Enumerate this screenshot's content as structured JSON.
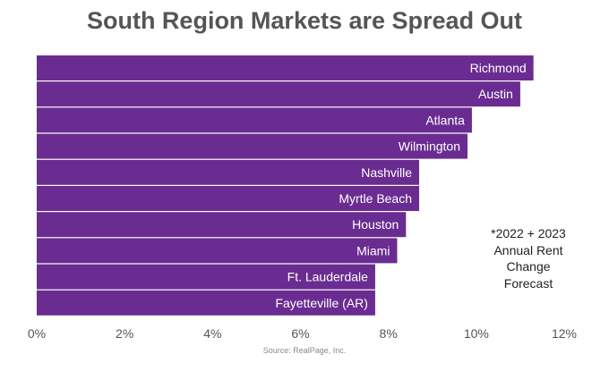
{
  "chart_data": {
    "type": "bar",
    "orientation": "horizontal",
    "title": "South Region Markets are Spread Out",
    "categories": [
      "Richmond",
      "Austin",
      "Atlanta",
      "Wilmington",
      "Nashville",
      "Myrtle Beach",
      "Houston",
      "Miami",
      "Ft. Lauderdale",
      "Fayetteville (AR)"
    ],
    "values": [
      11.3,
      11.0,
      9.9,
      9.8,
      8.7,
      8.7,
      8.4,
      8.2,
      7.7,
      7.7
    ],
    "xlim": [
      0,
      12
    ],
    "x_ticks": [
      0,
      2,
      4,
      6,
      8,
      10,
      12
    ],
    "x_tick_format": "percent",
    "grid": false,
    "bar_color": "#6a2c91",
    "annotation_lines": [
      "*2022 + 2023",
      "Annual Rent",
      "Change",
      "Forecast"
    ],
    "source": "Source: RealPage, Inc."
  }
}
